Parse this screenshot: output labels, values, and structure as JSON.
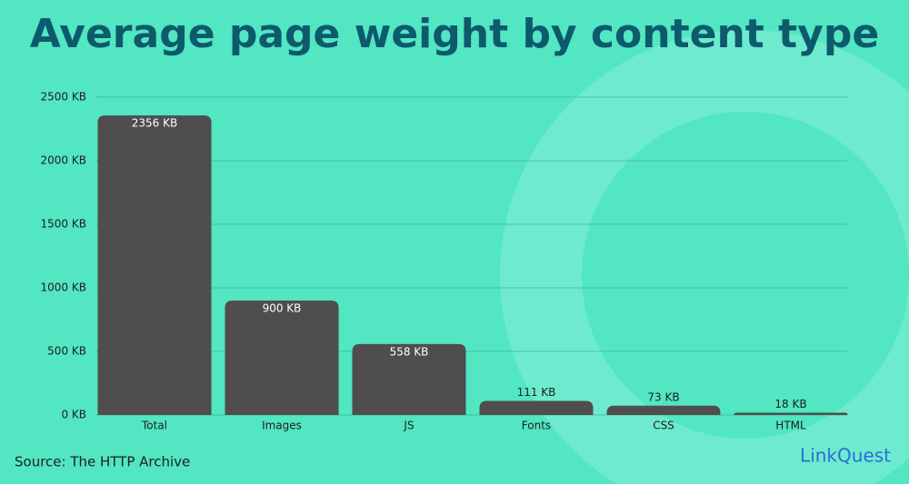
{
  "chart_data": {
    "type": "bar",
    "title": "Average page weight by content type",
    "categories": [
      "Total",
      "Images",
      "JS",
      "Fonts",
      "CSS",
      "HTML"
    ],
    "values": [
      2356,
      900,
      558,
      111,
      73,
      18
    ],
    "value_labels": [
      "2356 KB",
      "900 KB",
      "558 KB",
      "111 KB",
      "73 KB",
      "18 KB"
    ],
    "color": "#4f4d4e",
    "ylim": [
      0,
      2500
    ],
    "yticks": [
      {
        "value": 0,
        "label": "0 KB"
      },
      {
        "value": 500,
        "label": "500 KB"
      },
      {
        "value": 1000,
        "label": "1000 KB"
      },
      {
        "value": 1500,
        "label": "1500 KB"
      },
      {
        "value": 2000,
        "label": "2000 KB"
      },
      {
        "value": 2500,
        "label": "2500 KB"
      }
    ],
    "grid": true,
    "source": "Source: The HTTP Archive",
    "logo": "LinkQuest"
  }
}
